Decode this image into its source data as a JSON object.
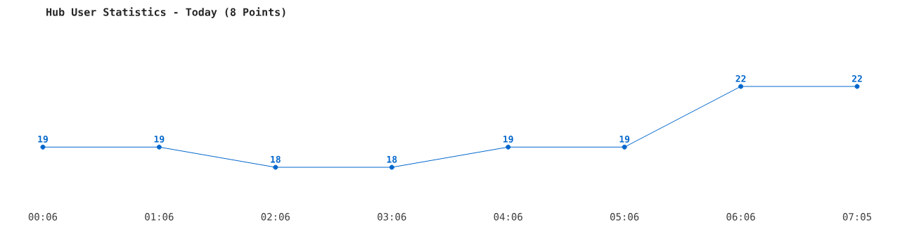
{
  "chart_data": {
    "type": "line",
    "title": "Hub User Statistics - Today (8 Points)",
    "categories": [
      "00:06",
      "01:06",
      "02:06",
      "03:06",
      "04:06",
      "05:06",
      "06:06",
      "07:05"
    ],
    "series": [
      {
        "color": "#0066cc",
        "values": [
          19,
          19,
          18,
          18,
          19,
          19,
          22,
          22
        ]
      }
    ],
    "data_labels": true,
    "marker": "circle",
    "line_style": "solid"
  }
}
